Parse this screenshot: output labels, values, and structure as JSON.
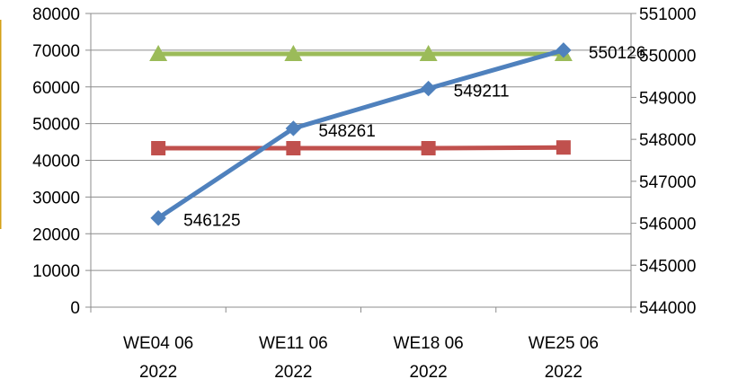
{
  "chart_data": {
    "type": "line",
    "categories": [
      [
        "WE04 06",
        "2022"
      ],
      [
        "WE11 06",
        "2022"
      ],
      [
        "WE18 06",
        "2022"
      ],
      [
        "WE25 06",
        "2022"
      ]
    ],
    "y_left": {
      "min": 0,
      "max": 80000,
      "step": 10000,
      "ticks": [
        "0",
        "10000",
        "20000",
        "30000",
        "40000",
        "50000",
        "60000",
        "70000",
        "80000"
      ]
    },
    "y_right": {
      "min": 544000,
      "max": 551000,
      "step": 1000,
      "ticks": [
        "544000",
        "545000",
        "546000",
        "547000",
        "548000",
        "549000",
        "550000",
        "551000"
      ]
    },
    "grid": "horizontal",
    "series": [
      {
        "axis": "right",
        "color": "#4F81BD",
        "marker": "diamond",
        "values": [
          546125,
          548261,
          549211,
          550126
        ],
        "labels": [
          "546125",
          "548261",
          "549211",
          "550126"
        ]
      },
      {
        "axis": "left",
        "color": "#C0504D",
        "marker": "square",
        "values": [
          43300,
          43300,
          43300,
          43500
        ]
      },
      {
        "axis": "left",
        "color": "#9BBB59",
        "marker": "triangle",
        "values": [
          69000,
          69000,
          69000,
          69000
        ]
      }
    ]
  }
}
